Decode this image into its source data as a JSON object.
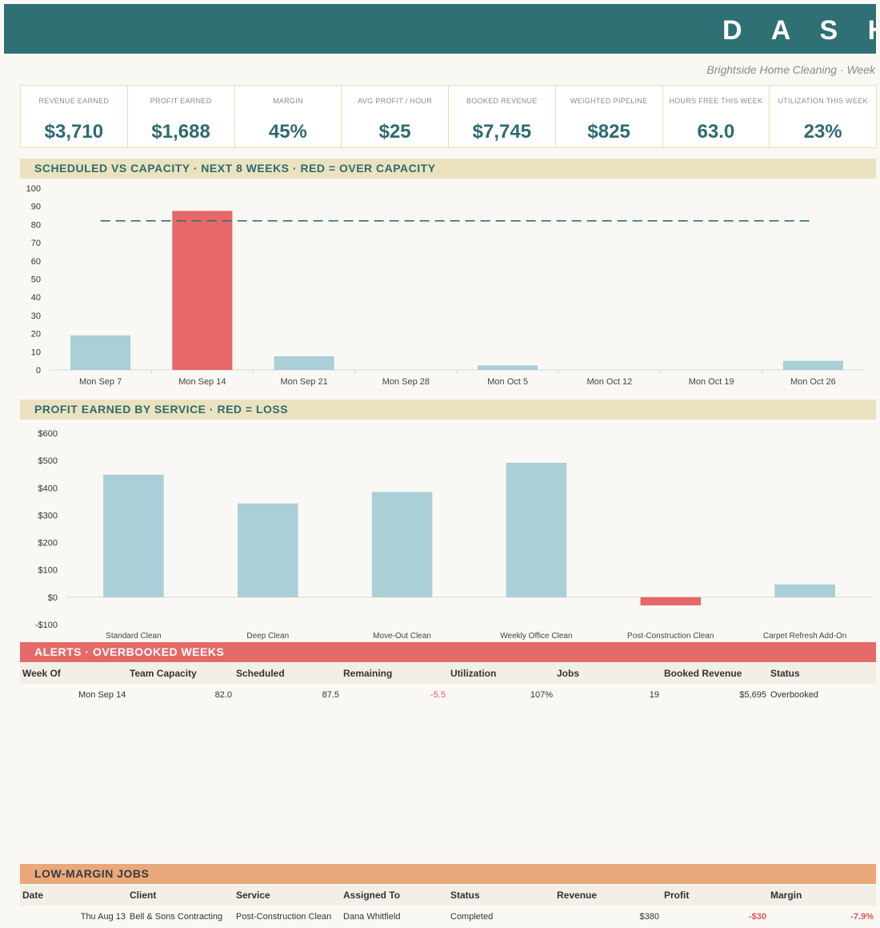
{
  "header": {
    "title": "D A S H B O A",
    "subtitle": "Brightside Home Cleaning  ·  Week"
  },
  "kpis": [
    {
      "label": "REVENUE EARNED",
      "value": "$3,710"
    },
    {
      "label": "PROFIT EARNED",
      "value": "$1,688"
    },
    {
      "label": "MARGIN",
      "value": "45%"
    },
    {
      "label": "AVG PROFIT / HOUR",
      "value": "$25"
    },
    {
      "label": "BOOKED REVENUE",
      "value": "$7,745"
    },
    {
      "label": "WEIGHTED PIPELINE",
      "value": "$825"
    },
    {
      "label": "HOURS FREE THIS WEEK",
      "value": "63.0"
    },
    {
      "label": "UTILIZATION THIS WEEK",
      "value": "23%"
    }
  ],
  "sections": {
    "capacity": "SCHEDULED VS CAPACITY  ·  NEXT 8 WEEKS  ·  RED = OVER CAPACITY",
    "profit": "PROFIT EARNED BY SERVICE   ·  RED = LOSS",
    "alerts": "ALERTS   ·  OVERBOOKED WEEKS",
    "low_margin": "LOW-MARGIN JOBS"
  },
  "colors": {
    "normal_bar": "#a9cfd7",
    "over_bar": "#e86868",
    "capacity_line": "#2e7074"
  },
  "chart_data": [
    {
      "type": "bar",
      "categories": [
        "Mon Sep 7",
        "Mon Sep 14",
        "Mon Sep 21",
        "Mon Sep 28",
        "Mon Oct 5",
        "Mon Oct 12",
        "Mon Oct 19",
        "Mon Oct 26"
      ],
      "values": [
        19,
        87.5,
        7.5,
        0,
        2.5,
        0,
        0,
        5
      ],
      "over_capacity": [
        false,
        true,
        false,
        false,
        false,
        false,
        false,
        false
      ],
      "capacity": 82,
      "ylim": [
        0,
        100
      ],
      "yticks": [
        0,
        10,
        20,
        30,
        40,
        50,
        60,
        70,
        80,
        90,
        100
      ]
    },
    {
      "type": "bar",
      "categories": [
        "Standard Clean",
        "Deep Clean",
        "Move-Out Clean",
        "Weekly Office Clean",
        "Post-Construction Clean",
        "Carpet Refresh Add-On"
      ],
      "values": [
        448,
        343,
        385,
        492,
        -30,
        47
      ],
      "ylim": [
        -100,
        600
      ],
      "yticks": [
        -100,
        0,
        100,
        200,
        300,
        400,
        500,
        600
      ],
      "ytick_labels": [
        "-$100",
        "$0",
        "$100",
        "$200",
        "$300",
        "$400",
        "$500",
        "$600"
      ]
    }
  ],
  "alerts": {
    "columns": [
      "Week Of",
      "Team Capacity",
      "Scheduled",
      "Remaining",
      "Utilization",
      "Jobs",
      "Booked Revenue",
      "Status"
    ],
    "rows": [
      {
        "week": "Mon Sep 14",
        "capacity": "82.0",
        "scheduled": "87.5",
        "remaining": "-5.5",
        "utilization": "107%",
        "jobs": "19",
        "booked": "$5,695",
        "status": "Overbooked"
      }
    ]
  },
  "low_margin": {
    "columns": [
      "Date",
      "Client",
      "Service",
      "Assigned To",
      "Status",
      "Revenue",
      "Profit",
      "Margin"
    ],
    "rows": [
      {
        "date": "Thu Aug 13",
        "client": "Bell & Sons Contracting",
        "service": "Post-Construction Clean",
        "assigned": "Dana Whitfield",
        "status": "Completed",
        "revenue": "$380",
        "profit": "-$30",
        "margin": "-7.9%"
      }
    ]
  }
}
